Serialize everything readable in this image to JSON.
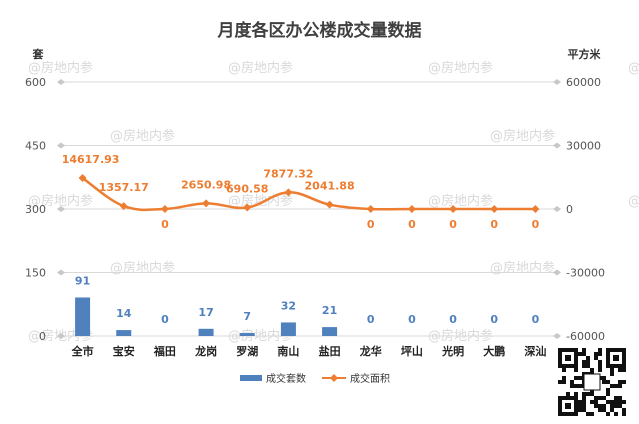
{
  "watermark": "@房地内参",
  "colors": {
    "bar": "#4f81bd",
    "line": "#ed7d31",
    "grid": "#d9d9d9",
    "bar_label": "#4f81bd",
    "line_label": "#ed7d31"
  },
  "chart_data": {
    "type": "bar+line",
    "title": "月度各区办公楼成交量数据",
    "left_axis_unit": "套",
    "right_axis_unit": "平方米",
    "categories": [
      "全市",
      "宝安",
      "福田",
      "龙岗",
      "罗湖",
      "南山",
      "盐田",
      "龙华",
      "坪山",
      "光明",
      "大鹏",
      "深汕"
    ],
    "left_axis": {
      "min": 0,
      "max": 600,
      "ticks": [
        0,
        150,
        300,
        450,
        600
      ]
    },
    "right_axis": {
      "min": -60000,
      "max": 60000,
      "ticks": [
        "-60000",
        "-30000",
        "0",
        "30000",
        "60000"
      ]
    },
    "grid": true,
    "legend_position": "bottom",
    "series": [
      {
        "name": "成交套数",
        "type": "bar",
        "axis": "left",
        "values": [
          91,
          14,
          0,
          17,
          7,
          32,
          21,
          0,
          0,
          0,
          0,
          0
        ],
        "labels": [
          "91",
          "14",
          "0",
          "17",
          "7",
          "32",
          "21",
          "0",
          "0",
          "0",
          "0",
          "0"
        ]
      },
      {
        "name": "成交面积",
        "type": "line",
        "axis": "right",
        "values": [
          14617.93,
          1357.17,
          0,
          2650.98,
          690.58,
          7877.32,
          2041.88,
          0,
          0,
          0,
          0,
          0
        ],
        "labels": [
          "14617.93",
          "1357.17",
          "0",
          "2650.98",
          "690.58",
          "7877.32",
          "2041.88",
          "0",
          "0",
          "0",
          "0",
          "0"
        ]
      }
    ]
  }
}
